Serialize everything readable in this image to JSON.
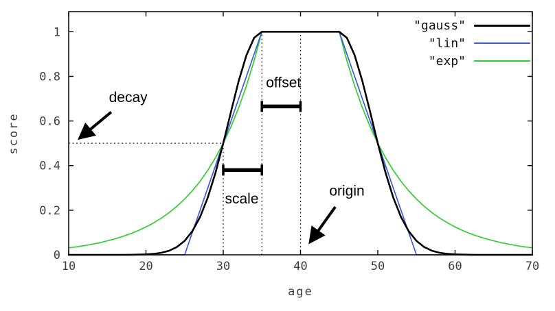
{
  "chart_data": {
    "type": "line",
    "title": "",
    "xlabel": "age",
    "ylabel": "score",
    "xlim": [
      10,
      70
    ],
    "ylim": [
      0,
      1.09
    ],
    "xticks": [
      10,
      20,
      30,
      40,
      50,
      60,
      70
    ],
    "xtick_labels": [
      "10",
      "20",
      "30",
      "40",
      "50",
      "60",
      "70"
    ],
    "yticks": [
      0,
      0.2,
      0.4,
      0.6,
      0.8,
      1
    ],
    "ytick_labels": [
      "0",
      "0.2",
      "0.4",
      "0.6",
      "0.8",
      "1"
    ],
    "grid": false,
    "legend_position": "top-right-inside",
    "background": "#ffffff",
    "parameters": {
      "origin": 40,
      "offset": 5,
      "scale": 5,
      "decay": 0.5
    },
    "x": [
      10,
      11,
      12,
      13,
      14,
      15,
      16,
      17,
      18,
      19,
      20,
      21,
      22,
      23,
      24,
      25,
      26,
      27,
      28,
      29,
      30,
      31,
      32,
      33,
      34,
      35,
      36,
      37,
      38,
      39,
      40,
      41,
      42,
      43,
      44,
      45,
      46,
      47,
      48,
      49,
      50,
      51,
      52,
      53,
      54,
      55,
      56,
      57,
      58,
      59,
      60,
      61,
      62,
      63,
      64,
      65,
      66,
      67,
      68,
      69,
      70
    ],
    "series": [
      {
        "id": "gauss",
        "name": "\"gauss\"",
        "color": "#000000",
        "width": 2.6,
        "values": [
          0,
          0,
          0,
          0,
          0,
          0,
          0,
          0.0001,
          0.0003,
          0.0008,
          0.002,
          0.0044,
          0.0092,
          0.0184,
          0.0349,
          0.0625,
          0.1058,
          0.1696,
          0.257,
          0.3686,
          0.5,
          0.6417,
          0.7792,
          0.895,
          0.9727,
          1,
          1,
          1,
          1,
          1,
          1,
          1,
          1,
          1,
          1,
          1,
          0.9727,
          0.895,
          0.7792,
          0.6417,
          0.5,
          0.3686,
          0.257,
          0.1696,
          0.1058,
          0.0625,
          0.0349,
          0.0184,
          0.0092,
          0.0044,
          0.002,
          0.0008,
          0.0003,
          0.0001,
          0,
          0,
          0,
          0,
          0,
          0,
          0
        ]
      },
      {
        "id": "lin",
        "name": "\"lin\"",
        "color": "#3b5bdb",
        "width": 1.7,
        "values": [
          0,
          0,
          0,
          0,
          0,
          0,
          0,
          0,
          0,
          0,
          0,
          0,
          0,
          0,
          0,
          0,
          0.1,
          0.2,
          0.3,
          0.4,
          0.5,
          0.6,
          0.7,
          0.8,
          0.9,
          1,
          1,
          1,
          1,
          1,
          1,
          1,
          1,
          1,
          1,
          1,
          0.9,
          0.8,
          0.7,
          0.6,
          0.5,
          0.4,
          0.3,
          0.2,
          0.1,
          0,
          0,
          0,
          0,
          0,
          0,
          0,
          0,
          0,
          0,
          0,
          0,
          0,
          0,
          0,
          0
        ]
      },
      {
        "id": "exp",
        "name": "\"exp\"",
        "color": "#33cc33",
        "width": 1.7,
        "values": [
          0.0313,
          0.0359,
          0.0412,
          0.0474,
          0.0544,
          0.0625,
          0.0718,
          0.0825,
          0.0947,
          0.1088,
          0.125,
          0.1436,
          0.1649,
          0.1895,
          0.2176,
          0.25,
          0.2872,
          0.3299,
          0.3789,
          0.4353,
          0.5,
          0.5743,
          0.6598,
          0.7579,
          0.8706,
          1,
          1,
          1,
          1,
          1,
          1,
          1,
          1,
          1,
          1,
          1,
          0.8706,
          0.7579,
          0.6598,
          0.5743,
          0.5,
          0.4353,
          0.3789,
          0.3299,
          0.2872,
          0.25,
          0.2176,
          0.1895,
          0.1649,
          0.1436,
          0.125,
          0.1088,
          0.0947,
          0.0825,
          0.0718,
          0.0625,
          0.0544,
          0.0474,
          0.0412,
          0.0359,
          0.0313
        ]
      }
    ],
    "guides": {
      "vertical": [
        {
          "x": 30,
          "y1": 0,
          "y2": 0.52
        },
        {
          "x": 35,
          "y1": 0,
          "y2": 1.0
        },
        {
          "x": 40,
          "y1": 0,
          "y2": 1.0
        }
      ],
      "horizontal": {
        "y": 0.5,
        "x1": 10,
        "x2": 30
      }
    },
    "annotations": {
      "texts": [
        {
          "id": "decay",
          "text": "decay",
          "x": 17.7,
          "y": 0.685
        },
        {
          "id": "offset",
          "text": "offset",
          "x": 37.8,
          "y": 0.75
        },
        {
          "id": "scale",
          "text": "scale",
          "x": 32.4,
          "y": 0.23
        },
        {
          "id": "origin",
          "text": "origin",
          "x": 46.0,
          "y": 0.265
        }
      ],
      "arrows": [
        {
          "id": "decay-arrow",
          "from": [
            15.5,
            0.64
          ],
          "to": [
            11.5,
            0.525
          ]
        },
        {
          "id": "origin-arrow",
          "from": [
            44.5,
            0.215
          ],
          "to": [
            41.3,
            0.06
          ]
        }
      ],
      "brackets": [
        {
          "id": "offset-bracket",
          "x1": 35,
          "x2": 40,
          "y": 0.665
        },
        {
          "id": "scale-bracket",
          "x1": 30,
          "x2": 35,
          "y": 0.38
        }
      ]
    }
  }
}
